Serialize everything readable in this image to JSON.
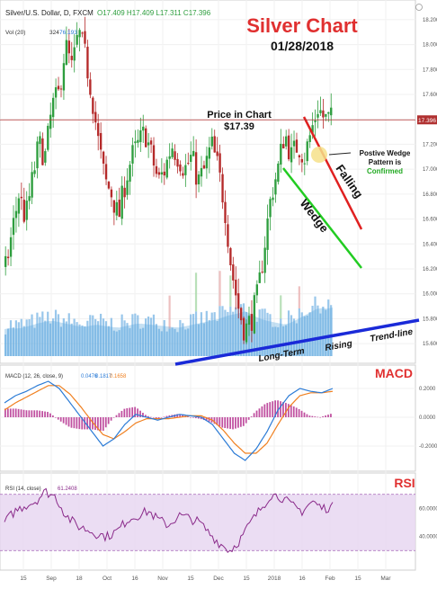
{
  "header": {
    "symbol_line": "Silver/U.S. Dollar, D, FXCM",
    "ohlc": "O17.409 H17.409 L17.311 C17.396",
    "vol_label": "Vol (20)",
    "vol_value": "324",
    "vol_value2": "76.193"
  },
  "annotations": {
    "title": "Silver Chart",
    "date": "01/28/2018",
    "price_label_line1": "Price in Chart",
    "price_label_line2": "$17.39",
    "wedge_note_line1": "Postive Wedge",
    "wedge_note_line2": "Pattern is",
    "wedge_note_line3": "Confirmed",
    "falling_label": "Falling",
    "wedge_label": "Wedge",
    "trend_word1": "Long-Term",
    "trend_word2": "Rising",
    "trend_word3": "Trend-line"
  },
  "panel_labels": {
    "macd_title": "MACD",
    "macd_legend": "MACD (12, 26, close, 9)",
    "macd_v1": "0.0476",
    "macd_v2": "0.1817",
    "macd_v3": "0.1658",
    "rsi_title": "RSI",
    "rsi_legend": "RSI (14, close)",
    "rsi_value": "61.2408"
  },
  "colors": {
    "bull": "#2e9e3e",
    "bear": "#b52a2a",
    "volume": "#7fb9e6",
    "price_line": "#b03030",
    "wedge_red": "#e02020",
    "wedge_green": "#22cc22",
    "trend_blue": "#1a2ad8",
    "macd_line": "#2b7bd6",
    "signal_line": "#f08020",
    "hist": "#c050a0",
    "rsi_line": "#8a2a8a",
    "rsi_band": "#e6d4f0",
    "title_red": "#e03030"
  },
  "chart_data": [
    {
      "type": "candlestick",
      "y_axis_ticks": [
        "18.200",
        "18.000",
        "17.800",
        "17.600",
        "17.400",
        "17.200",
        "17.000",
        "16.800",
        "16.600",
        "16.400",
        "16.200",
        "16.000",
        "15.800",
        "15.600"
      ],
      "ylim": [
        15.5,
        18.3
      ],
      "current_price": 17.396,
      "current_price_label": "17.396",
      "x_tick_labels": [
        "15",
        "Sep",
        "18",
        "Oct",
        "16",
        "Nov",
        "15",
        "Dec",
        "15",
        "2018",
        "16",
        "Feb",
        "15",
        "Mar"
      ],
      "close_path": [
        16.2,
        16.5,
        16.8,
        16.6,
        16.9,
        17.2,
        17.1,
        17.5,
        17.6,
        18.0,
        17.8,
        18.1,
        17.9,
        17.6,
        17.2,
        16.9,
        16.8,
        16.6,
        16.9,
        17.1,
        17.2,
        17.3,
        17.1,
        16.9,
        17.0,
        17.2,
        17.1,
        17.0,
        17.1,
        16.9,
        17.0,
        17.2,
        17.0,
        16.7,
        16.2,
        15.9,
        15.7,
        15.8,
        16.0,
        16.4,
        16.8,
        17.0,
        17.3,
        17.1,
        17.2,
        17.1,
        17.3,
        17.5,
        17.4,
        17.4
      ],
      "volume_level_path": [
        0.3,
        0.32,
        0.3,
        0.33,
        0.35,
        0.38,
        0.4,
        0.42,
        0.4,
        0.38,
        0.36,
        0.34,
        0.33,
        0.35,
        0.36,
        0.34,
        0.33,
        0.32,
        0.34,
        0.36,
        0.38,
        0.37,
        0.36,
        0.35,
        0.34,
        0.33,
        0.32,
        0.34,
        0.36,
        0.38,
        0.4,
        0.42,
        0.44,
        0.48,
        0.5,
        0.52,
        0.55,
        0.5,
        0.45,
        0.42,
        0.4,
        0.38,
        0.36,
        0.4,
        0.45,
        0.5,
        0.55,
        0.6,
        0.58,
        0.6
      ]
    },
    {
      "type": "line",
      "name": "MACD",
      "y_axis_ticks": [
        "0.2000",
        "0.0000",
        "-0.2000"
      ],
      "ylim": [
        -0.35,
        0.3
      ],
      "macd_path": [
        0.1,
        0.15,
        0.18,
        0.22,
        0.25,
        0.2,
        0.1,
        0.0,
        -0.1,
        -0.2,
        -0.15,
        -0.05,
        0.02,
        0.0,
        -0.02,
        0.0,
        0.02,
        0.01,
        0.0,
        -0.05,
        -0.15,
        -0.25,
        -0.3,
        -0.22,
        -0.1,
        0.05,
        0.15,
        0.2,
        0.18,
        0.17,
        0.2
      ],
      "signal_path": [
        0.05,
        0.1,
        0.14,
        0.18,
        0.22,
        0.22,
        0.16,
        0.07,
        -0.03,
        -0.12,
        -0.15,
        -0.1,
        -0.04,
        -0.01,
        -0.01,
        -0.01,
        0.0,
        0.01,
        0.01,
        -0.02,
        -0.09,
        -0.18,
        -0.25,
        -0.25,
        -0.18,
        -0.05,
        0.07,
        0.15,
        0.17,
        0.17,
        0.18
      ]
    },
    {
      "type": "line",
      "name": "RSI",
      "y_axis_ticks": [
        "60.0000",
        "40.0000"
      ],
      "ylim": [
        20,
        80
      ],
      "band": [
        30,
        70
      ],
      "rsi_path": [
        50,
        58,
        62,
        65,
        72,
        68,
        55,
        48,
        45,
        42,
        40,
        44,
        52,
        55,
        58,
        52,
        48,
        55,
        53,
        50,
        42,
        35,
        30,
        38,
        50,
        60,
        70,
        68,
        62,
        58,
        65,
        60,
        61
      ]
    }
  ]
}
